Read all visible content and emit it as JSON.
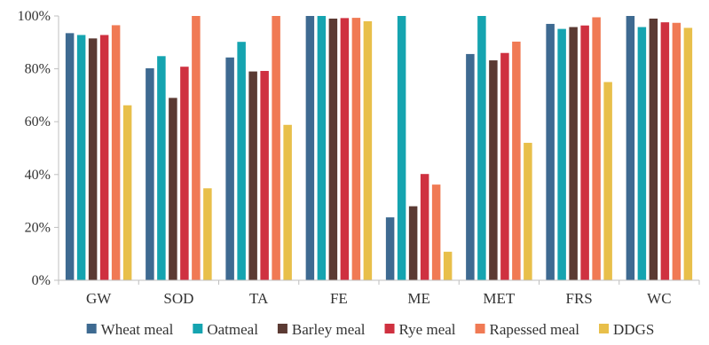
{
  "chart_data": {
    "type": "bar",
    "categories": [
      "GW",
      "SOD",
      "TA",
      "FE",
      "ME",
      "MET",
      "FRS",
      "WC"
    ],
    "ylim": [
      0,
      100
    ],
    "yticks": [
      0,
      20,
      40,
      60,
      80,
      100
    ],
    "ytick_suffix": "%",
    "grid": false,
    "legend_position": "bottom",
    "series": [
      {
        "name": "Wheat meal",
        "color": "#3e6a91",
        "values": [
          93.5,
          80.2,
          84.3,
          100,
          23.8,
          85.6,
          97.0,
          100
        ]
      },
      {
        "name": "Oatmeal",
        "color": "#15a4b0",
        "values": [
          92.8,
          84.8,
          90.2,
          100,
          100,
          100,
          95.1,
          95.8
        ]
      },
      {
        "name": "Barley meal",
        "color": "#5b3a33",
        "values": [
          91.5,
          69.0,
          79.0,
          99.0,
          28.0,
          83.2,
          95.8,
          99.0
        ]
      },
      {
        "name": "Rye meal",
        "color": "#cf3140",
        "values": [
          92.8,
          80.8,
          79.2,
          99.2,
          40.2,
          86.0,
          96.4,
          97.6
        ]
      },
      {
        "name": "Rapessed meal",
        "color": "#f07a54",
        "values": [
          96.5,
          100,
          100,
          99.3,
          36.2,
          90.3,
          99.5,
          97.4
        ]
      },
      {
        "name": "DDGS",
        "color": "#e8bf4a",
        "values": [
          66.2,
          34.8,
          58.8,
          98.0,
          10.8,
          52.0,
          75.0,
          95.5
        ]
      }
    ]
  }
}
